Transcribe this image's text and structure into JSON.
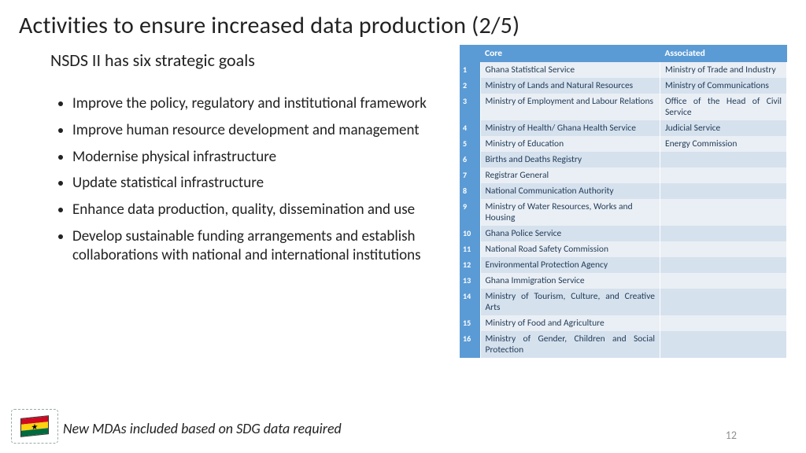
{
  "title": "Activities to ensure increased data production (2/5)",
  "subtitle": "NSDS II has six strategic goals",
  "bullets": [
    "Improve the policy, regulatory and institutional framework",
    "Improve human resource development and management",
    "Modernise physical infrastructure",
    "Update statistical infrastructure",
    "Enhance data production, quality, dissemination and use",
    "Develop sustainable funding arrangements and establish collaborations with national and international institutions"
  ],
  "footer_note": "New MDAs included based on SDG data required",
  "page_number": "12",
  "table": {
    "headers": {
      "num": "",
      "core": "Core",
      "assoc": "Associated"
    },
    "rows": [
      {
        "n": "1",
        "core": "Ghana Statistical Service",
        "assoc": "Ministry of Trade and Industry",
        "core_justify": false,
        "assoc_justify": true
      },
      {
        "n": "2",
        "core": "Ministry of Lands and Natural Resources",
        "assoc": "Ministry of Communications",
        "core_justify": true,
        "assoc_justify": true
      },
      {
        "n": "3",
        "core": "Ministry of Employment and Labour Relations",
        "assoc": "Office of the Head of Civil Service",
        "core_justify": true,
        "assoc_justify": true
      },
      {
        "n": "4",
        "core": "Ministry of Health/ Ghana Health Service",
        "assoc": "Judicial Service",
        "core_justify": true,
        "assoc_justify": false
      },
      {
        "n": "5",
        "core": "Ministry of Education",
        "assoc": "Energy Commission"
      },
      {
        "n": "6",
        "core": "Births and Deaths Registry",
        "assoc": ""
      },
      {
        "n": "7",
        "core": "Registrar General",
        "assoc": ""
      },
      {
        "n": "8",
        "core": "National Communication Authority",
        "assoc": ""
      },
      {
        "n": "9",
        "core": "Ministry of Water Resources, Works and Housing",
        "assoc": ""
      },
      {
        "n": "10",
        "core": "Ghana Police Service",
        "assoc": ""
      },
      {
        "n": "11",
        "core": "National Road Safety Commission",
        "assoc": ""
      },
      {
        "n": "12",
        "core": "Environmental Protection Agency",
        "assoc": ""
      },
      {
        "n": "13",
        "core": "Ghana Immigration Service",
        "assoc": ""
      },
      {
        "n": "14",
        "core": "Ministry of Tourism, Culture, and Creative Arts",
        "assoc": "",
        "core_justify": true
      },
      {
        "n": "15",
        "core": "Ministry of Food and Agriculture",
        "assoc": ""
      },
      {
        "n": "16",
        "core": "Ministry of Gender, Children and Social Protection",
        "assoc": "",
        "core_justify": true
      }
    ]
  },
  "colors": {
    "header_blue": "#5b9bd5",
    "row_light": "#eaeff5",
    "row_dark": "#d6e1ee",
    "cell_text": "#1f3a56"
  }
}
